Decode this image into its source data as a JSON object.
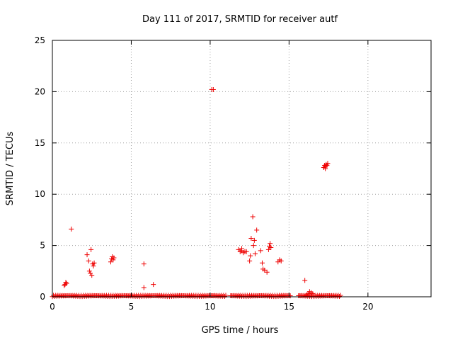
{
  "chart_data": {
    "type": "scatter",
    "title": "Day 111 of 2017, SRMTID for receiver autf",
    "xlabel": "GPS time / hours",
    "ylabel": "SRMTID / TECUs",
    "xlim": [
      0,
      24
    ],
    "ylim": [
      0,
      25
    ],
    "x_ticks": [
      0,
      5,
      10,
      15,
      20
    ],
    "y_ticks": [
      0,
      5,
      10,
      15,
      20,
      25
    ],
    "grid": true,
    "marker": "+",
    "color": "#ee0000",
    "baseline_segments": [
      [
        0.0,
        11.0
      ],
      [
        11.3,
        15.1
      ],
      [
        15.6,
        18.3
      ]
    ],
    "points": [
      [
        0.8,
        1.2
      ],
      [
        0.85,
        1.4
      ],
      [
        0.9,
        1.3
      ],
      [
        0.75,
        1.1
      ],
      [
        1.2,
        6.6
      ],
      [
        2.2,
        4.1
      ],
      [
        2.3,
        3.5
      ],
      [
        2.35,
        2.5
      ],
      [
        2.4,
        2.3
      ],
      [
        2.5,
        2.1
      ],
      [
        2.45,
        4.6
      ],
      [
        2.55,
        3.2
      ],
      [
        2.65,
        3.3
      ],
      [
        2.6,
        3.0
      ],
      [
        3.7,
        3.4
      ],
      [
        3.75,
        3.7
      ],
      [
        3.8,
        3.9
      ],
      [
        3.85,
        3.6
      ],
      [
        3.9,
        3.8
      ],
      [
        5.8,
        3.2
      ],
      [
        5.8,
        0.9
      ],
      [
        6.4,
        1.2
      ],
      [
        10.1,
        20.2
      ],
      [
        10.2,
        20.2
      ],
      [
        11.8,
        4.6
      ],
      [
        11.9,
        4.4
      ],
      [
        12.0,
        4.5
      ],
      [
        12.1,
        4.3
      ],
      [
        12.2,
        4.4
      ],
      [
        12.3,
        4.4
      ],
      [
        12.0,
        4.7
      ],
      [
        12.5,
        3.5
      ],
      [
        12.55,
        4.0
      ],
      [
        12.6,
        5.7
      ],
      [
        12.7,
        7.8
      ],
      [
        12.75,
        5.0
      ],
      [
        12.8,
        5.5
      ],
      [
        12.85,
        4.2
      ],
      [
        12.95,
        6.5
      ],
      [
        13.2,
        4.5
      ],
      [
        13.3,
        3.3
      ],
      [
        13.35,
        2.7
      ],
      [
        13.45,
        2.6
      ],
      [
        13.6,
        2.4
      ],
      [
        13.7,
        4.6
      ],
      [
        13.75,
        4.9
      ],
      [
        13.8,
        5.2
      ],
      [
        13.85,
        4.8
      ],
      [
        14.3,
        3.4
      ],
      [
        14.4,
        3.6
      ],
      [
        14.5,
        3.5
      ],
      [
        16.0,
        1.6
      ],
      [
        16.1,
        0.2
      ],
      [
        16.2,
        0.3
      ],
      [
        16.3,
        0.5
      ],
      [
        16.4,
        0.4
      ],
      [
        16.5,
        0.3
      ],
      [
        17.2,
        12.6
      ],
      [
        17.25,
        12.8
      ],
      [
        17.3,
        12.7
      ],
      [
        17.35,
        12.9
      ],
      [
        17.4,
        12.8
      ],
      [
        17.45,
        13.0
      ],
      [
        17.3,
        12.5
      ]
    ]
  }
}
